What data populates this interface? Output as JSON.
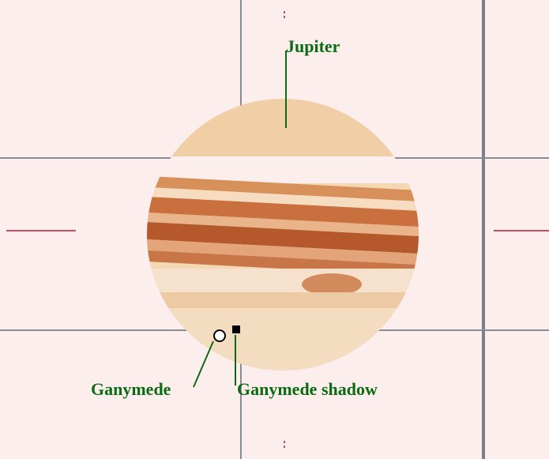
{
  "labels": {
    "jupiter": "Jupiter",
    "ganymede": "Ganymede",
    "ganymede_shadow": "Ganymede shadow"
  }
}
